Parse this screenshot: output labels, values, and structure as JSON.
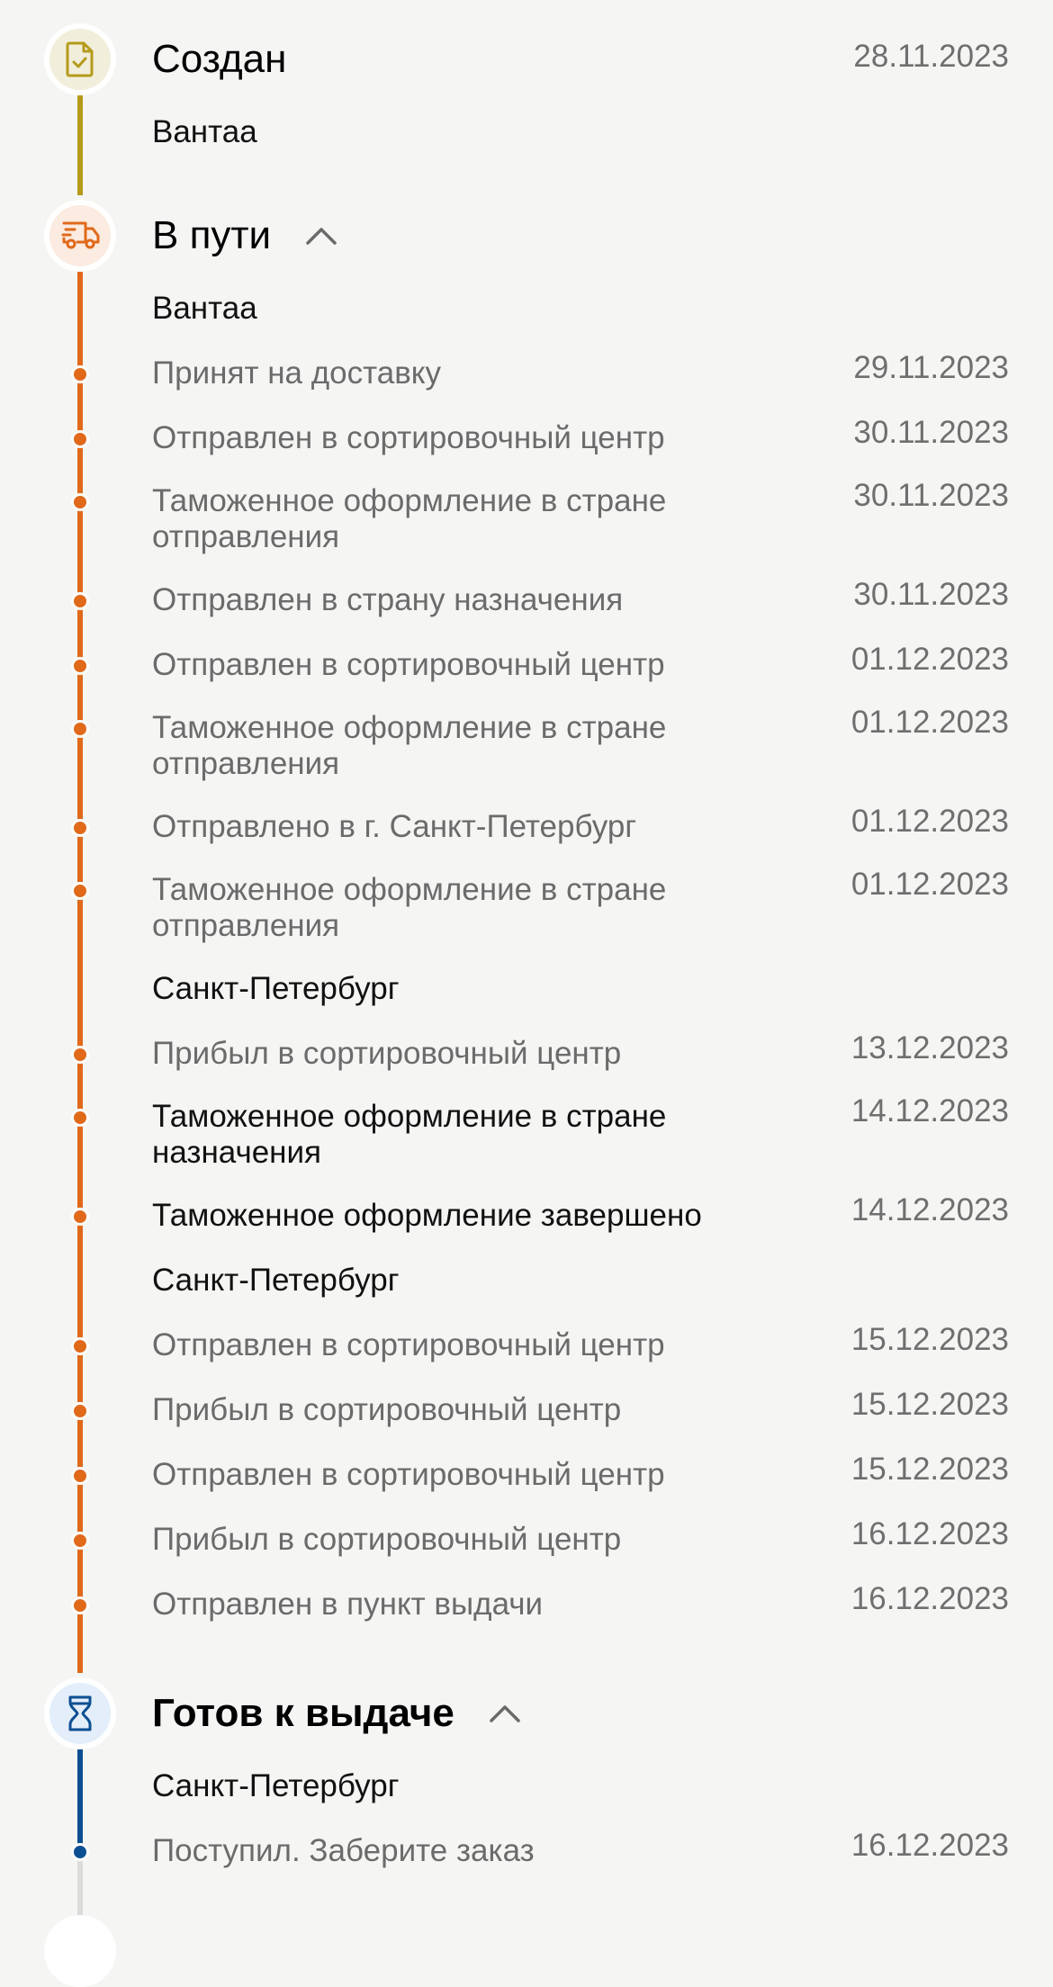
{
  "colors": {
    "created": "#b49b1c",
    "created_bg": "#f1eedb",
    "transit": "#e0691a",
    "transit_bg": "#fcebe0",
    "ready": "#0d4f93",
    "ready_bg": "#e3eefa",
    "pending": "#dcdcdc"
  },
  "sections": [
    {
      "key": "created",
      "title": "Создан",
      "icon": "document-check-icon",
      "date": "28.11.2023",
      "bold": false,
      "chevron": false,
      "rows": [
        {
          "type": "location",
          "text": "Вантаа"
        }
      ]
    },
    {
      "key": "transit",
      "title": "В пути",
      "icon": "truck-icon",
      "bold": false,
      "chevron": true,
      "rows": [
        {
          "type": "location",
          "text": "Вантаа"
        },
        {
          "type": "event",
          "text": "Принят на доставку",
          "date": "29.11.2023"
        },
        {
          "type": "event",
          "text": "Отправлен в сортировочный центр",
          "date": "30.11.2023"
        },
        {
          "type": "event",
          "text": "Таможенное оформление в стране отправления",
          "date": "30.11.2023",
          "two": true
        },
        {
          "type": "event",
          "text": "Отправлен в страну назначения",
          "date": "30.11.2023"
        },
        {
          "type": "event",
          "text": "Отправлен в сортировочный центр",
          "date": "01.12.2023"
        },
        {
          "type": "event",
          "text": "Таможенное оформление в стране отправления",
          "date": "01.12.2023",
          "two": true
        },
        {
          "type": "event",
          "text": "Отправлено в г. Санкт-Петербург",
          "date": "01.12.2023"
        },
        {
          "type": "event",
          "text": "Таможенное оформление в стране отправления",
          "date": "01.12.2023",
          "two": true
        },
        {
          "type": "location",
          "text": "Санкт-Петербург"
        },
        {
          "type": "event",
          "text": "Прибыл в сортировочный центр",
          "date": "13.12.2023"
        },
        {
          "type": "event",
          "text": "Таможенное оформление в стране назначения",
          "date": "14.12.2023",
          "two": true,
          "dark": true
        },
        {
          "type": "event",
          "text": "Таможенное оформление завершено",
          "date": "14.12.2023",
          "dark": true
        },
        {
          "type": "location",
          "text": "Санкт-Петербург"
        },
        {
          "type": "event",
          "text": "Отправлен в сортировочный центр",
          "date": "15.12.2023"
        },
        {
          "type": "event",
          "text": "Прибыл в сортировочный центр",
          "date": "15.12.2023"
        },
        {
          "type": "event",
          "text": "Отправлен в сортировочный центр",
          "date": "15.12.2023"
        },
        {
          "type": "event",
          "text": "Прибыл в сортировочный центр",
          "date": "16.12.2023"
        },
        {
          "type": "event",
          "text": "Отправлен в пункт выдачи",
          "date": "16.12.2023"
        }
      ]
    },
    {
      "key": "ready",
      "title": "Готов к выдаче",
      "icon": "hourglass-icon",
      "bold": true,
      "chevron": true,
      "rows": [
        {
          "type": "location",
          "text": "Санкт-Петербург"
        },
        {
          "type": "event",
          "text": "Поступил. Заберите заказ",
          "date": "16.12.2023"
        }
      ]
    }
  ]
}
